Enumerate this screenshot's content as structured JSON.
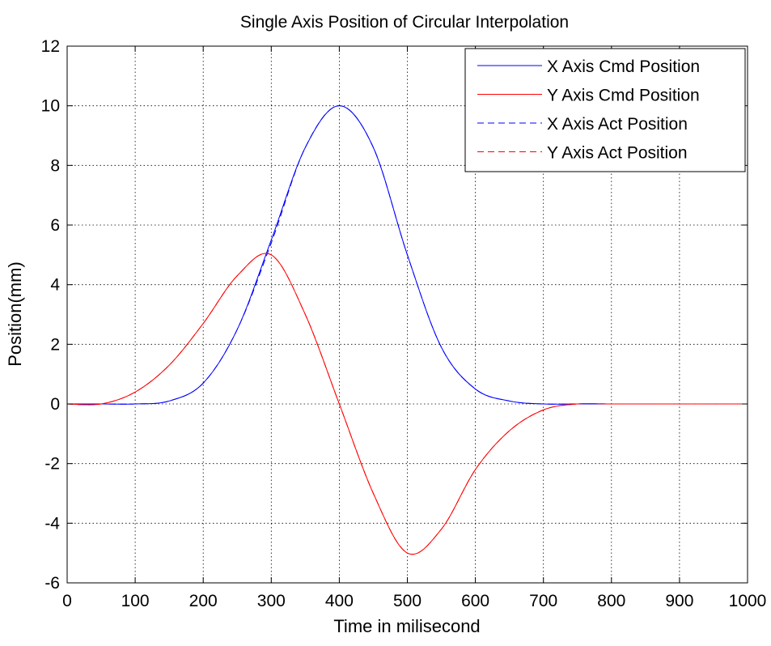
{
  "chart_data": {
    "type": "line",
    "title": "Single Axis Position of Circular Interpolation",
    "xlabel": "Time in milisecond",
    "ylabel": "Position(mm)",
    "xlim": [
      0,
      1000
    ],
    "ylim": [
      -6,
      12
    ],
    "xticks": [
      "0",
      "100",
      "200",
      "300",
      "400",
      "500",
      "600",
      "700",
      "800",
      "900",
      "1000"
    ],
    "yticks": [
      "12",
      "10",
      "8",
      "6",
      "4",
      "2",
      "0",
      "-2",
      "-4",
      "-6"
    ],
    "grid": true,
    "legend_position": "top-right",
    "x": [
      0,
      50,
      100,
      150,
      200,
      250,
      300,
      350,
      400,
      450,
      500,
      550,
      600,
      650,
      700,
      750,
      800,
      850,
      900,
      950,
      1000
    ],
    "series": [
      {
        "name": "X Axis Cmd Position",
        "color": "#0000ff",
        "linestyle": "solid",
        "values": [
          0,
          0,
          0,
          0.1,
          0.7,
          2.5,
          5.5,
          8.6,
          10,
          8.6,
          5,
          1.9,
          0.5,
          0.1,
          0,
          0,
          0,
          0,
          0,
          0,
          0
        ]
      },
      {
        "name": "Y Axis Cmd Position",
        "color": "#ff0000",
        "linestyle": "solid",
        "values": [
          0,
          0,
          0.4,
          1.3,
          2.7,
          4.3,
          5,
          3,
          0,
          -3,
          -5,
          -4.2,
          -2.2,
          -0.9,
          -0.2,
          0,
          0,
          0,
          0,
          0,
          0
        ]
      },
      {
        "name": "X Axis Act Position",
        "color": "#0000ff",
        "linestyle": "dashed",
        "values": [
          0,
          0,
          0,
          0.1,
          0.7,
          2.5,
          5.4,
          8.6,
          10,
          8.6,
          5,
          1.9,
          0.5,
          0.1,
          0,
          0,
          0,
          0,
          0,
          0,
          0
        ]
      },
      {
        "name": "Y Axis Act Position",
        "color": "#ff0000",
        "linestyle": "dashed",
        "values": [
          0,
          0,
          0.4,
          1.3,
          2.7,
          4.3,
          5,
          3,
          0,
          -3,
          -5,
          -4.2,
          -2.2,
          -0.9,
          -0.2,
          0,
          0,
          0,
          0,
          0,
          0
        ]
      }
    ]
  }
}
